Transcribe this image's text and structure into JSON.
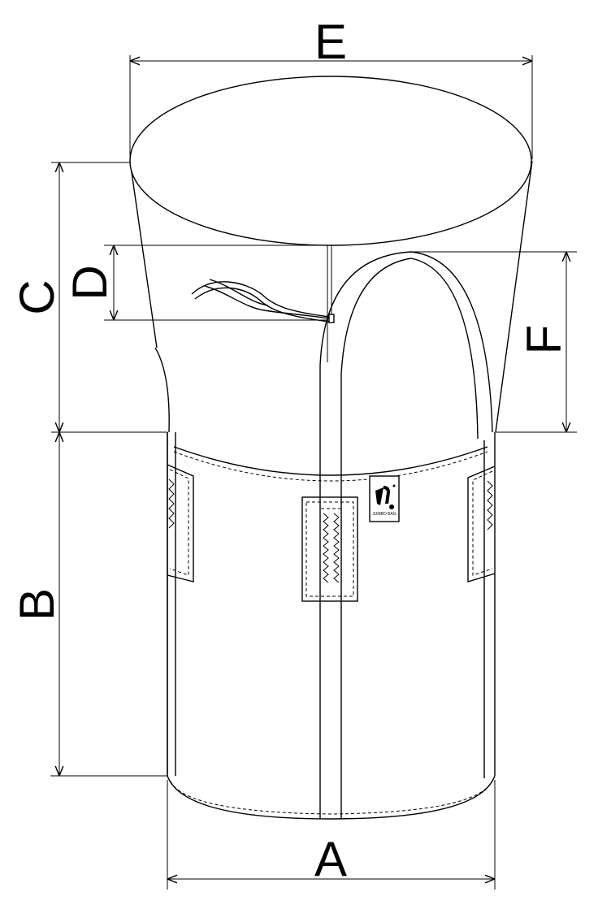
{
  "labels": {
    "A": "A",
    "B": "B",
    "C": "C",
    "D": "D",
    "E": "E",
    "F": "F"
  },
  "tag_text": "JUMBO BAG"
}
